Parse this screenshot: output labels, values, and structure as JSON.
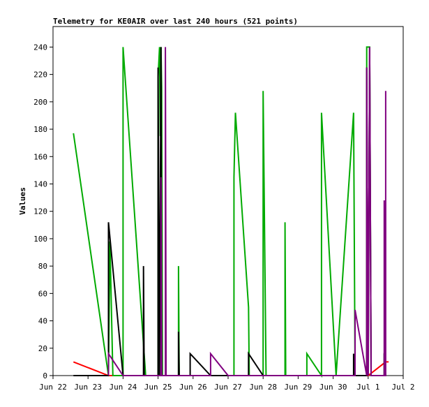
{
  "chart_data": {
    "type": "line",
    "title": "Telemetry for KE0AIR over last 240 hours (521 points)",
    "xlabel": "",
    "ylabel": "Values",
    "xlim": [
      "2023-06-22",
      "2023-07-02"
    ],
    "ylim": [
      0,
      255
    ],
    "yticks": [
      0,
      20,
      40,
      60,
      80,
      100,
      120,
      140,
      160,
      180,
      200,
      220,
      240
    ],
    "xticks": [
      {
        "date": "2023-06-22",
        "label": "Jun 22"
      },
      {
        "date": "2023-06-23",
        "label": "Jun 23"
      },
      {
        "date": "2023-06-24",
        "label": "Jun 24"
      },
      {
        "date": "2023-06-25",
        "label": "Jun 25"
      },
      {
        "date": "2023-06-26",
        "label": "Jun 26"
      },
      {
        "date": "2023-06-27",
        "label": "Jun 27"
      },
      {
        "date": "2023-06-28",
        "label": "Jun 28"
      },
      {
        "date": "2023-06-29",
        "label": "Jun 29"
      },
      {
        "date": "2023-06-30",
        "label": "Jun 30"
      },
      {
        "date": "2023-07-01",
        "label": "Jul 1"
      },
      {
        "date": "2023-07-02",
        "label": "Jul 2"
      }
    ],
    "grid": false,
    "legend": "none",
    "series": [
      {
        "color": "#ff0000",
        "points": [
          [
            "2023-06-22 14:00",
            10
          ],
          [
            "2023-06-23 14:00",
            0
          ],
          [
            "2023-06-24 00:00",
            0
          ],
          [
            "2023-07-01 00:00",
            0
          ],
          [
            "2023-07-01 12:00",
            10
          ],
          [
            "2023-07-01 14:00",
            10
          ]
        ]
      },
      {
        "color": "#00aa00",
        "points": [
          [
            "2023-06-22 14:00",
            177
          ],
          [
            "2023-06-23 14:00",
            0
          ],
          [
            "2023-06-23 15:00",
            98
          ],
          [
            "2023-06-23 17:00",
            0
          ],
          [
            "2023-06-24 00:00",
            0
          ],
          [
            "2023-06-24 00:00",
            240
          ],
          [
            "2023-06-24 15:30",
            0
          ],
          [
            "2023-06-25 00:00",
            0
          ],
          [
            "2023-06-25 00:00",
            218
          ],
          [
            "2023-06-25 01:00",
            240
          ],
          [
            "2023-06-25 01:30",
            175
          ],
          [
            "2023-06-25 02:00",
            240
          ],
          [
            "2023-06-25 02:30",
            210
          ],
          [
            "2023-06-25 03:00",
            0
          ],
          [
            "2023-06-25 14:00",
            0
          ],
          [
            "2023-06-25 14:00",
            80
          ],
          [
            "2023-06-25 14:30",
            0
          ],
          [
            "2023-06-27 04:00",
            0
          ],
          [
            "2023-06-27 04:00",
            145
          ],
          [
            "2023-06-27 05:00",
            192
          ],
          [
            "2023-06-27 14:00",
            50
          ],
          [
            "2023-06-27 14:30",
            0
          ],
          [
            "2023-06-28 00:00",
            0
          ],
          [
            "2023-06-28 00:00",
            208
          ],
          [
            "2023-06-28 02:00",
            0
          ],
          [
            "2023-06-28 15:00",
            0
          ],
          [
            "2023-06-28 15:00",
            112
          ],
          [
            "2023-06-28 15:30",
            0
          ],
          [
            "2023-06-29 06:00",
            0
          ],
          [
            "2023-06-29 06:00",
            16
          ],
          [
            "2023-06-29 16:00",
            0
          ],
          [
            "2023-06-29 16:00",
            192
          ],
          [
            "2023-06-30 02:00",
            0
          ],
          [
            "2023-06-30 14:00",
            192
          ],
          [
            "2023-06-30 15:00",
            0
          ],
          [
            "2023-06-30 16:00",
            0
          ],
          [
            "2023-06-30 23:00",
            0
          ],
          [
            "2023-06-30 23:00",
            240
          ],
          [
            "2023-07-01 00:00",
            240
          ],
          [
            "2023-07-01 01:00",
            240
          ],
          [
            "2023-07-01 02:00",
            0
          ],
          [
            "2023-07-01 11:00",
            0
          ],
          [
            "2023-07-01 11:00",
            16
          ],
          [
            "2023-07-01 12:00",
            0
          ]
        ]
      },
      {
        "color": "#000000",
        "points": [
          [
            "2023-06-22 14:00",
            0
          ],
          [
            "2023-06-23 14:00",
            0
          ],
          [
            "2023-06-23 14:00",
            112
          ],
          [
            "2023-06-24 00:00",
            0
          ],
          [
            "2023-06-24 14:00",
            0
          ],
          [
            "2023-06-24 14:00",
            80
          ],
          [
            "2023-06-24 14:30",
            0
          ],
          [
            "2023-06-25 00:00",
            0
          ],
          [
            "2023-06-25 00:00",
            225
          ],
          [
            "2023-06-25 01:00",
            0
          ],
          [
            "2023-06-25 02:00",
            240
          ],
          [
            "2023-06-25 02:30",
            0
          ],
          [
            "2023-06-25 14:00",
            0
          ],
          [
            "2023-06-25 14:00",
            32
          ],
          [
            "2023-06-25 14:30",
            0
          ],
          [
            "2023-06-25 22:00",
            0
          ],
          [
            "2023-06-25 22:00",
            16
          ],
          [
            "2023-06-26 12:00",
            0
          ],
          [
            "2023-06-27 14:00",
            0
          ],
          [
            "2023-06-27 14:00",
            16
          ],
          [
            "2023-06-28 00:00",
            0
          ],
          [
            "2023-06-30 14:00",
            0
          ],
          [
            "2023-06-30 14:00",
            16
          ],
          [
            "2023-06-30 14:30",
            0
          ],
          [
            "2023-06-30 23:00",
            0
          ],
          [
            "2023-06-30 23:00",
            225
          ],
          [
            "2023-07-01 00:00",
            0
          ],
          [
            "2023-07-01 01:00",
            240
          ],
          [
            "2023-07-01 02:00",
            0
          ],
          [
            "2023-07-01 11:00",
            0
          ],
          [
            "2023-07-01 11:00",
            16
          ],
          [
            "2023-07-01 12:00",
            16
          ]
        ]
      },
      {
        "color": "#800080",
        "points": [
          [
            "2023-06-23 14:00",
            0
          ],
          [
            "2023-06-23 14:00",
            16
          ],
          [
            "2023-06-24 00:00",
            0
          ],
          [
            "2023-06-25 02:00",
            0
          ],
          [
            "2023-06-25 02:00",
            145
          ],
          [
            "2023-06-25 02:30",
            0
          ],
          [
            "2023-06-25 05:00",
            0
          ],
          [
            "2023-06-25 05:00",
            240
          ],
          [
            "2023-06-25 05:30",
            0
          ],
          [
            "2023-06-26 12:00",
            0
          ],
          [
            "2023-06-26 12:00",
            16
          ],
          [
            "2023-06-27 00:00",
            0
          ],
          [
            "2023-06-30 15:00",
            0
          ],
          [
            "2023-06-30 15:00",
            48
          ],
          [
            "2023-06-30 23:00",
            0
          ],
          [
            "2023-06-30 23:00",
            225
          ],
          [
            "2023-07-01 00:00",
            0
          ],
          [
            "2023-07-01 01:00",
            240
          ],
          [
            "2023-07-01 02:00",
            0
          ],
          [
            "2023-07-01 11:00",
            0
          ],
          [
            "2023-07-01 11:00",
            128
          ],
          [
            "2023-07-01 11:30",
            0
          ],
          [
            "2023-07-01 12:00",
            0
          ],
          [
            "2023-07-01 12:00",
            208
          ]
        ]
      }
    ]
  }
}
